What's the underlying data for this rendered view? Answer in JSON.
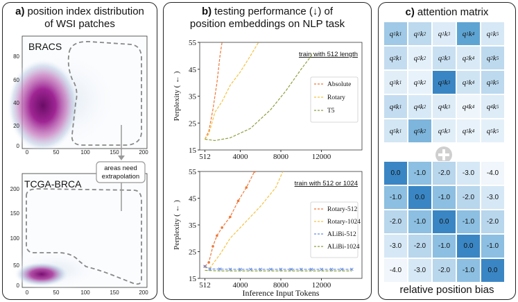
{
  "panel_a": {
    "letter": "a)",
    "title_line1": "position index distribution",
    "title_line2": "of WSI patches",
    "top_plot": {
      "label": "BRACS",
      "xticks": [
        "0",
        "50",
        "100",
        "150",
        "200"
      ],
      "yticks": [
        "0",
        "20",
        "40",
        "60",
        "80"
      ]
    },
    "bottom_plot": {
      "label": "TCGA-BRCA",
      "xticks": [
        "0",
        "50",
        "100",
        "150",
        "200"
      ],
      "yticks": [
        "0",
        "50",
        "100",
        "150",
        "200"
      ]
    },
    "annotation_line1": "areas need",
    "annotation_line2": "extrapolation",
    "colors": {
      "density": "#8b0f82",
      "density_light": "#c8d8ea",
      "region_outline": "#888888"
    }
  },
  "panel_b": {
    "letter": "b)",
    "title_line1": "testing performance (↓) of",
    "title_line2": "position embeddings on NLP task",
    "chart_data": [
      {
        "type": "line",
        "annotation": "train with 512 length",
        "ylabel": "Perplexity ( ← )",
        "xticks": [
          "512",
          "4000",
          "8000",
          "12000"
        ],
        "yticks": [
          "15",
          "25",
          "35",
          "45",
          "55"
        ],
        "xlim": [
          0,
          16000
        ],
        "ylim": [
          15,
          55
        ],
        "series": [
          {
            "name": "Absolute",
            "color": "#f07838",
            "x": [
              512,
              900,
              1300,
              1700,
              2000,
              2200
            ],
            "y": [
              19,
              22,
              30,
              40,
              50,
              55
            ]
          },
          {
            "name": "Rotary",
            "color": "#f5c242",
            "x": [
              512,
              900,
              1500,
              2200,
              3000,
              4000,
              5000,
              5800
            ],
            "y": [
              19,
              21,
              29,
              33,
              39,
              44,
              50,
              55
            ]
          },
          {
            "name": "T5",
            "color": "#8ca040",
            "x": [
              512,
              1500,
              3000,
              5000,
              7000,
              8500,
              10000,
              11200
            ],
            "y": [
              19,
              18.5,
              19.5,
              23,
              30,
              37,
              45,
              51
            ]
          }
        ]
      },
      {
        "type": "line",
        "annotation": "train with 512 or 1024",
        "ylabel": "Perplexity ( ← )",
        "xlabel": "Inference Input Tokens",
        "xticks": [
          "512",
          "4000",
          "8000",
          "12000"
        ],
        "yticks": [
          "15",
          "25",
          "35",
          "45",
          "55"
        ],
        "xlim": [
          0,
          16000
        ],
        "ylim": [
          15,
          55
        ],
        "series": [
          {
            "name": "Rotary-512",
            "color": "#f07838",
            "marker": "dot",
            "x": [
              512,
              900,
              1300,
              1700,
              2200,
              3000,
              3800,
              4600,
              5400
            ],
            "y": [
              19.5,
              21,
              27,
              31,
              34,
              38,
              44,
              49,
              55
            ]
          },
          {
            "name": "Rotary-1024",
            "color": "#f5c242",
            "x": [
              512,
              1024,
              2000,
              3000,
              4500,
              6000,
              7500,
              8200
            ],
            "y": [
              19,
              19,
              24,
              30,
              36,
              42,
              49,
              55
            ]
          },
          {
            "name": "ALiBi-512",
            "color": "#6b8fe0",
            "marker": "x",
            "x": [
              512,
              1000,
              2000,
              3000,
              4000,
              5000,
              6000,
              7000,
              8000,
              9000,
              10000,
              11000,
              12000,
              13000,
              14000,
              15000
            ],
            "y": [
              19.5,
              18.5,
              18.5,
              18.4,
              18.4,
              18.4,
              18.4,
              18.4,
              18.4,
              18.4,
              18.4,
              18.4,
              18.4,
              18.4,
              18.4,
              18.4
            ]
          },
          {
            "name": "ALiBi-1024",
            "color": "#8ca040",
            "x": [
              512,
              2000,
              4000,
              8000,
              12000,
              15000
            ],
            "y": [
              18,
              17.8,
              17.8,
              17.8,
              17.8,
              17.8
            ]
          }
        ]
      }
    ]
  },
  "panel_c": {
    "letter": "c)",
    "title": "attention matrix",
    "bottom_title": "relative position bias",
    "attention": [
      [
        "q1k1",
        "q1k2",
        "q1k3",
        "q1k4",
        "q1k5"
      ],
      [
        "q2k1",
        "q2k2",
        "q2k3",
        "q2k4",
        "q2k5"
      ],
      [
        "q3k1",
        "q3k2",
        "q3k3",
        "q3k4",
        "q3k5"
      ],
      [
        "q4k1",
        "q4k2",
        "q4k3",
        "q4k4",
        "q4k5"
      ],
      [
        "q5k1",
        "q5k2",
        "q5k3",
        "q5k4",
        "q5k5"
      ]
    ],
    "attention_colors": [
      [
        "#9fc9e6",
        "#bcd9ee",
        "#dcebf7",
        "#5ea4d3",
        "#d6e8f5"
      ],
      [
        "#c3dcf0",
        "#e4f0f9",
        "#c8e0f2",
        "#d9eaf6",
        "#bdd9ee"
      ],
      [
        "#e1eef8",
        "#e8f2fa",
        "#3a86c4",
        "#cfe4f3",
        "#bcd9ee"
      ],
      [
        "#c3dcf0",
        "#d7e9f6",
        "#ddecf7",
        "#eef5fb",
        "#ddecf7"
      ],
      [
        "#d2e6f4",
        "#7db5dc",
        "#e0eef8",
        "#e8f2fa",
        "#e4f0f9"
      ]
    ],
    "bias": [
      [
        "0.0",
        "-1.0",
        "-2.0",
        "-3.0",
        "-4.0"
      ],
      [
        "-1.0",
        "0.0",
        "-1.0",
        "-2.0",
        "-3.0"
      ],
      [
        "-2.0",
        "-1.0",
        "0.0",
        "-1.0",
        "-2.0"
      ],
      [
        "-3.0",
        "-2.0",
        "-1.0",
        "0.0",
        "-1.0"
      ],
      [
        "-4.0",
        "-3.0",
        "-2.0",
        "-1.0",
        "0.0"
      ]
    ],
    "bias_colors": {
      "0.0": "#3a86c4",
      "-1.0": "#8cbfe1",
      "-2.0": "#b8d6ec",
      "-3.0": "#d6e8f5",
      "-4.0": "#f0f6fb"
    }
  }
}
